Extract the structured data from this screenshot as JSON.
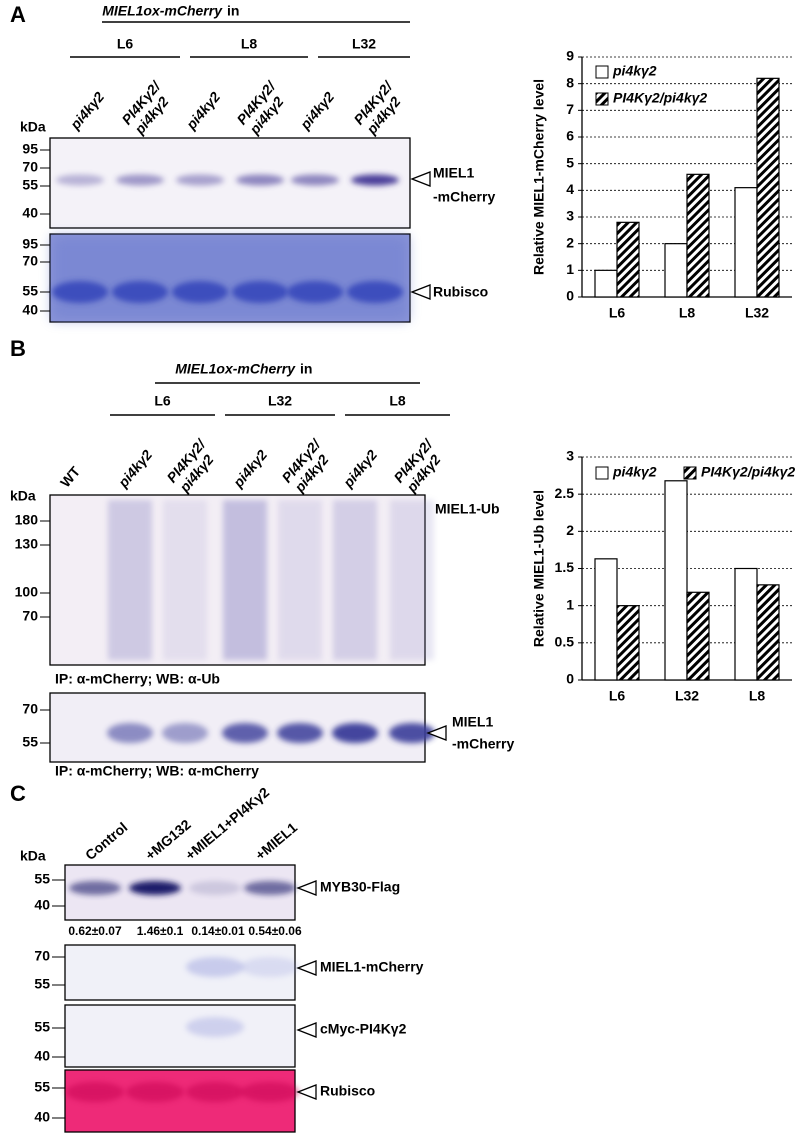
{
  "panels": {
    "A": {
      "label": "A",
      "header_italic": "MIEL1ox-mCherry",
      "header_text": "in",
      "groups": [
        "L6",
        "L8",
        "L32"
      ],
      "lanes": [
        [
          "pi4kγ2"
        ],
        [
          "PI4Kγ2/",
          "pi4kγ2"
        ],
        [
          "pi4kγ2"
        ],
        [
          "PI4Kγ2/",
          "pi4kγ2"
        ],
        [
          "pi4kγ2"
        ],
        [
          "PI4Kγ2/",
          "pi4kγ2"
        ]
      ],
      "kda": "kDa",
      "markers_top": [
        "95",
        "70",
        "55",
        "40"
      ],
      "markers_bottom": [
        "95",
        "70",
        "55",
        "40"
      ],
      "band_label": [
        "MIEL1",
        "-mCherry"
      ],
      "loading_label": "Rubisco"
    },
    "B": {
      "label": "B",
      "header_italic": "MIEL1ox-mCherry",
      "header_text": "in",
      "groups": [
        "L6",
        "L32",
        "L8"
      ],
      "lanes": [
        [
          "WT"
        ],
        [
          "pi4kγ2"
        ],
        [
          "PI4Kγ2/",
          "pi4kγ2"
        ],
        [
          "pi4kγ2"
        ],
        [
          "PI4Kγ2/",
          "pi4kγ2"
        ],
        [
          "pi4kγ2"
        ],
        [
          "PI4Kγ2/",
          "pi4kγ2"
        ]
      ],
      "kda": "kDa",
      "markers_top": [
        "180",
        "130",
        "100",
        "70"
      ],
      "ub_label": "MIEL1-Ub",
      "caption_top": "IP: α-mCherry; WB: α-Ub",
      "markers_bottom": [
        "70",
        "55"
      ],
      "band_label": [
        "MIEL1",
        "-mCherry"
      ],
      "caption_bottom": "IP: α-mCherry; WB: α-mCherry"
    },
    "C": {
      "label": "C",
      "lanes": [
        "Control",
        "+MG132",
        "+MIEL1+PI4Kγ2",
        "+MIEL1"
      ],
      "kda": "kDa",
      "blots": [
        {
          "markers": [
            "55",
            "40"
          ],
          "label": "MYB30-Flag"
        },
        {
          "markers": [
            "70",
            "55"
          ],
          "label": "MIEL1-mCherry"
        },
        {
          "markers": [
            "55",
            "40"
          ],
          "label": "cMyc-PI4Kγ2"
        },
        {
          "markers": [
            "55",
            "40"
          ],
          "label": "Rubisco"
        }
      ],
      "quantities": [
        "0.62±0.07",
        "1.46±0.1",
        "0.14±0.01",
        "0.54±0.06"
      ]
    }
  },
  "chart_data": [
    {
      "type": "bar",
      "y_label": "Relative MIEL1-mCherry level",
      "categories": [
        "L6",
        "L8",
        "L32"
      ],
      "series": [
        {
          "name": "pi4kγ2",
          "color": "#ffffff",
          "values": [
            1,
            2,
            4.1
          ]
        },
        {
          "name": "PI4Kγ2/pi4kγ2",
          "color": "#000000",
          "pattern": "hatch",
          "values": [
            2.8,
            4.6,
            8.2
          ]
        }
      ],
      "ylim": [
        0,
        9
      ],
      "yticks": [
        0,
        1,
        2,
        3,
        4,
        5,
        6,
        7,
        8,
        9
      ],
      "grid": true,
      "legend": "top-left"
    },
    {
      "type": "bar",
      "y_label": "Relative MIEL1-Ub level",
      "categories": [
        "L6",
        "L32",
        "L8"
      ],
      "series": [
        {
          "name": "pi4kγ2",
          "color": "#ffffff",
          "values": [
            1.63,
            2.68,
            1.5
          ]
        },
        {
          "name": "PI4Kγ2/pi4kγ2",
          "color": "#000000",
          "pattern": "hatch",
          "values": [
            1.0,
            1.18,
            1.28
          ]
        }
      ],
      "ylim": [
        0,
        3
      ],
      "yticks": [
        0,
        0.5,
        1,
        1.5,
        2,
        2.5,
        3
      ],
      "grid": true,
      "legend": "top"
    }
  ]
}
